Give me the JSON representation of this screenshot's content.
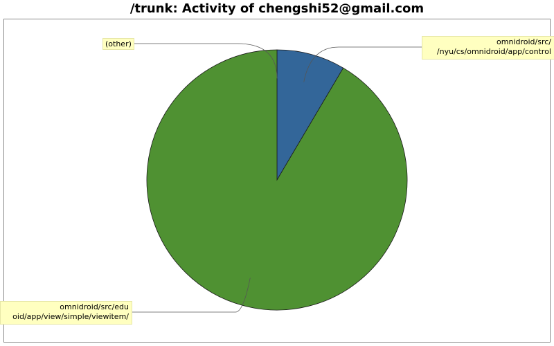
{
  "chart_data": {
    "type": "pie",
    "title": "/trunk: Activity of chengshi52@gmail.com",
    "start_angle_deg": 90,
    "direction": "clockwise",
    "slices": [
      {
        "label": "omnidroid/src/ /nyu/cs/omnidroid/app/control",
        "label_lines": [
          "omnidroid/src/",
          "/nyu/cs/omnidroid/app/control"
        ],
        "value": 8.5,
        "color": "#336699"
      },
      {
        "label": "omnidroid/src/edu oid/app/view/simple/viewitem/",
        "label_lines": [
          "omnidroid/src/edu",
          "oid/app/view/simple/viewitem/"
        ],
        "value": 91.5,
        "color": "#4f9132"
      },
      {
        "label": "(other)",
        "label_lines": [
          "(other)"
        ],
        "value": 0,
        "color": "#999999"
      }
    ],
    "legend": "none"
  }
}
